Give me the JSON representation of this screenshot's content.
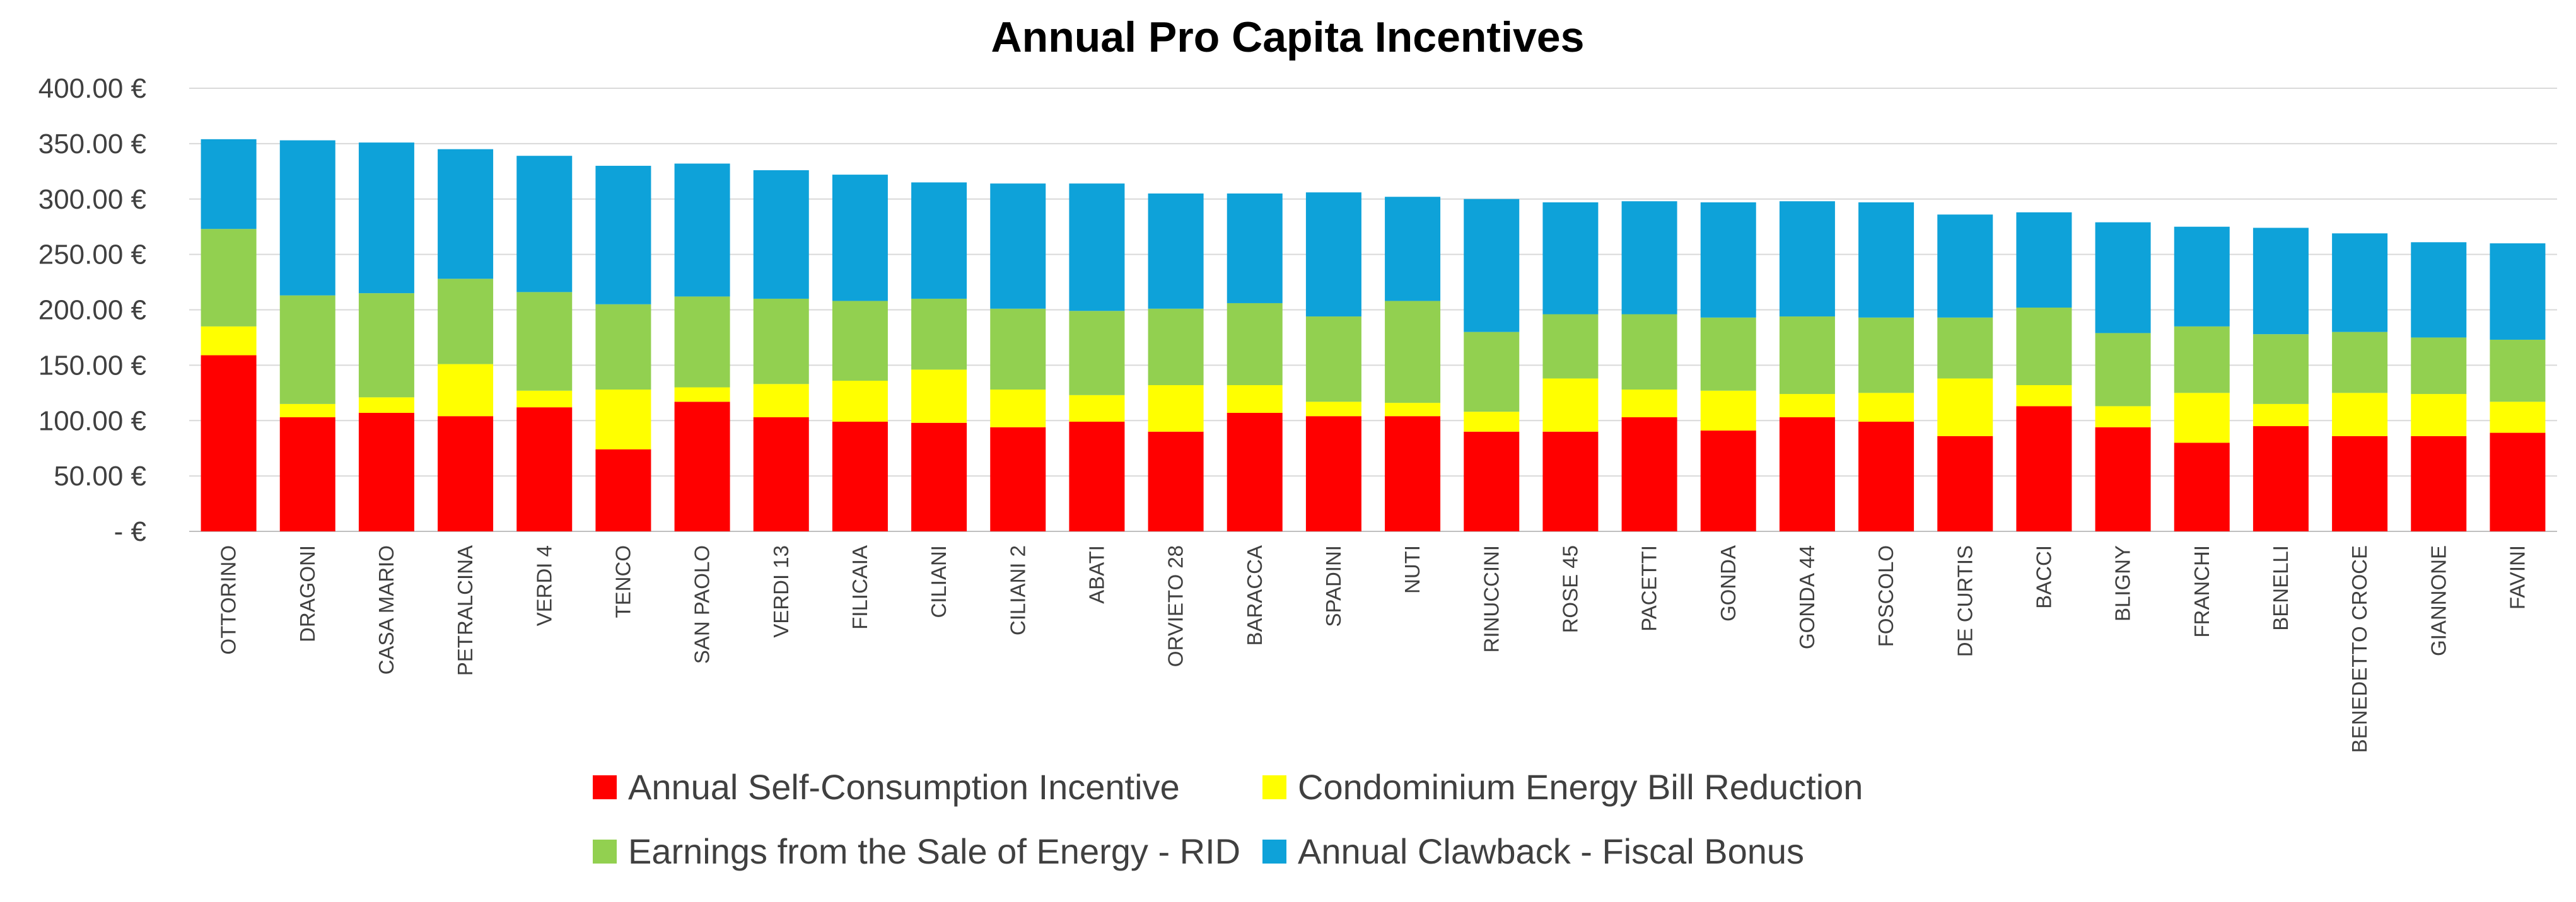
{
  "chart_data": {
    "type": "bar",
    "stacked": true,
    "title": "Annual Pro Capita Incentives",
    "xlabel": "",
    "ylabel": "",
    "ylim": [
      0,
      400
    ],
    "y_ticks": [
      0,
      50,
      100,
      150,
      200,
      250,
      300,
      350,
      400
    ],
    "y_tick_labels": [
      " -  €",
      "50.00 €",
      "100.00 €",
      "150.00 €",
      "200.00 €",
      "250.00 €",
      "300.00 €",
      "350.00 €",
      "400.00 €"
    ],
    "grid": true,
    "legend_position": "bottom",
    "categories": [
      "OTTORINO",
      "DRAGONI",
      "CASA MARIO",
      "PETRALCINA",
      "VERDI 4",
      "TENCO",
      "SAN PAOLO",
      "VERDI 13",
      "FILICAIA",
      "CILIANI",
      "CILIANI 2",
      "ABATI",
      "ORVIETO 28",
      "BARACCA",
      "SPADINI",
      "NUTI",
      "RINUCCINI",
      "ROSE 45",
      "PACETTI",
      "GONDA",
      "GONDA 44",
      "FOSCOLO",
      "DE CURTIS",
      "BACCI",
      "BLIGNY",
      "FRANCHI",
      "BENELLI",
      "BENEDETTO CROCE",
      "GIANNONE",
      "FAVINI"
    ],
    "series": [
      {
        "name": "Annual Self-Consumption Incentive",
        "color": "#ff0000",
        "values": [
          159,
          103,
          107,
          104,
          112,
          74,
          117,
          103,
          99,
          98,
          94,
          99,
          90,
          107,
          104,
          104,
          90,
          90,
          103,
          91,
          103,
          99,
          86,
          113,
          94,
          80,
          95,
          86,
          86,
          89
        ]
      },
      {
        "name": "Condominium Energy Bill Reduction",
        "color": "#ffff00",
        "values": [
          26,
          12,
          14,
          47,
          15,
          54,
          13,
          30,
          37,
          48,
          34,
          24,
          42,
          25,
          13,
          12,
          18,
          48,
          25,
          36,
          21,
          26,
          52,
          19,
          19,
          45,
          20,
          39,
          38,
          28
        ]
      },
      {
        "name": "Earnings from the Sale of Energy - RID",
        "color": "#92d050",
        "values": [
          88,
          98,
          94,
          77,
          89,
          77,
          82,
          77,
          72,
          64,
          73,
          76,
          69,
          74,
          77,
          92,
          72,
          58,
          68,
          66,
          70,
          68,
          55,
          70,
          66,
          60,
          63,
          55,
          51,
          56
        ]
      },
      {
        "name": "Annual Clawback - Fiscal Bonus",
        "color": "#0ea2d9",
        "values": [
          81,
          140,
          136,
          117,
          123,
          125,
          120,
          116,
          114,
          105,
          113,
          115,
          104,
          99,
          112,
          94,
          120,
          101,
          102,
          104,
          104,
          104,
          93,
          86,
          100,
          90,
          96,
          89,
          86,
          87
        ]
      }
    ]
  }
}
